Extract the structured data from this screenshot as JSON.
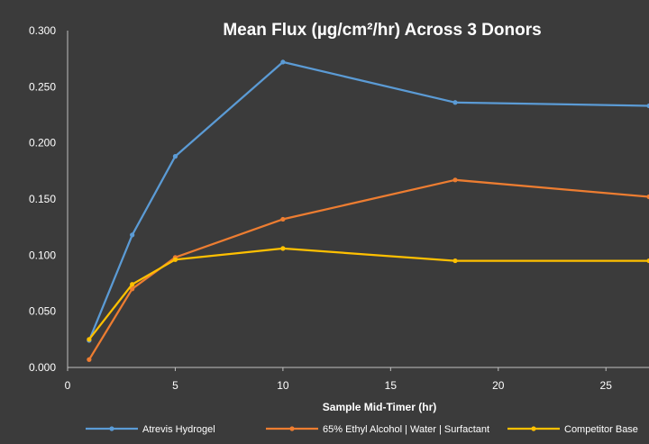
{
  "chart_data": {
    "type": "line",
    "title": "Mean Flux (µg/cm²/hr) Across 3 Donors",
    "xlabel": "Sample Mid-Timer (hr)",
    "ylabel": "",
    "xlim": [
      0,
      27
    ],
    "ylim": [
      0,
      0.3
    ],
    "x_ticks": [
      "0",
      "5",
      "10",
      "15",
      "20",
      "25"
    ],
    "y_ticks": [
      "0.000",
      "0.050",
      "0.100",
      "0.150",
      "0.200",
      "0.250",
      "0.300"
    ],
    "grid": false,
    "legend_position": "bottom",
    "x": [
      1,
      3,
      5,
      10,
      18,
      27
    ],
    "series": [
      {
        "name": "Atrevis Hydrogel",
        "color": "#5b9bd5",
        "values": [
          0.024,
          0.118,
          0.188,
          0.272,
          0.236,
          0.233
        ]
      },
      {
        "name": "65% Ethyl Alcohol | Water | Surfactant",
        "color": "#ed7d31",
        "values": [
          0.007,
          0.07,
          0.098,
          0.132,
          0.167,
          0.152
        ]
      },
      {
        "name": "Competitor Base",
        "color": "#ffc000",
        "values": [
          0.025,
          0.074,
          0.096,
          0.106,
          0.095,
          0.095
        ]
      }
    ]
  }
}
